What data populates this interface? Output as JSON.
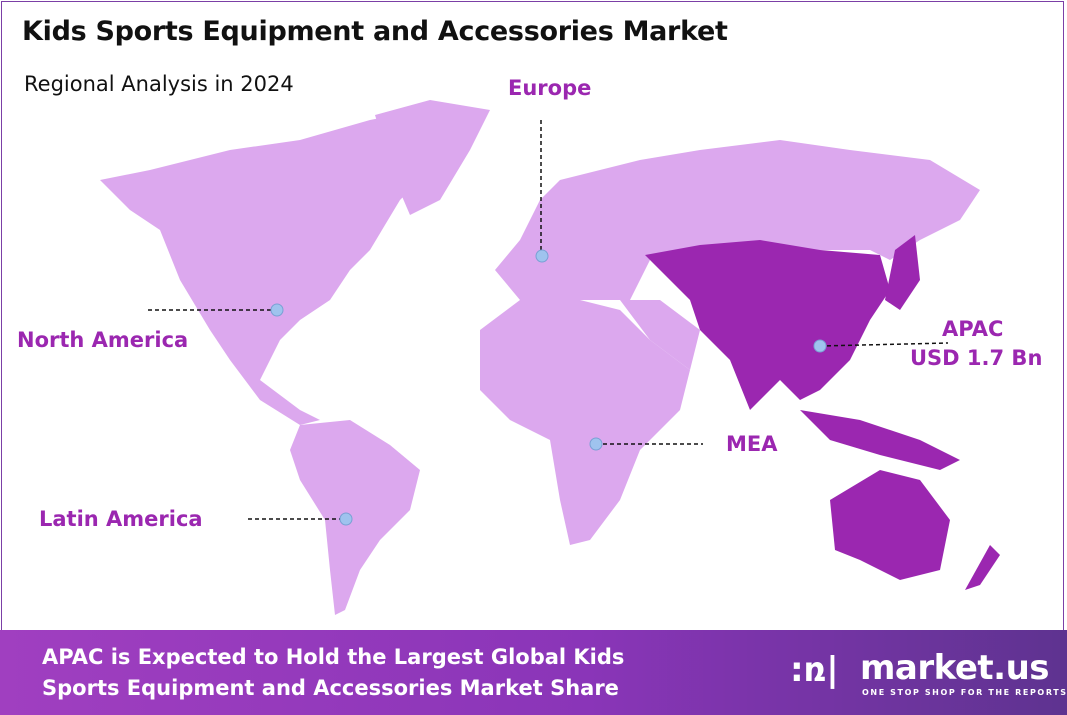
{
  "header": {
    "title": "Kids Sports Equipment and Accessories Market",
    "subtitle": "Regional Analysis in 2024"
  },
  "colors": {
    "region_default": "#dca8ee",
    "region_highlight": "#9b27b0",
    "label": "#9b27b0",
    "marker": "#9fc3ee",
    "footer_start": "#a03fc0",
    "footer_end": "#5e3390"
  },
  "regions": [
    {
      "name": "North America",
      "highlighted": false
    },
    {
      "name": "Europe",
      "highlighted": false
    },
    {
      "name": "APAC",
      "value": "USD 1.7 Bn",
      "highlighted": true
    },
    {
      "name": "MEA",
      "highlighted": false
    },
    {
      "name": "Latin America",
      "highlighted": false
    }
  ],
  "footer": {
    "line1": "APAC is Expected to Hold the Largest Global Kids",
    "line2": "Sports Equipment and Accessories Market Share"
  },
  "logo": {
    "name": "market.us",
    "tagline": "ONE STOP SHOP FOR THE REPORTS"
  }
}
